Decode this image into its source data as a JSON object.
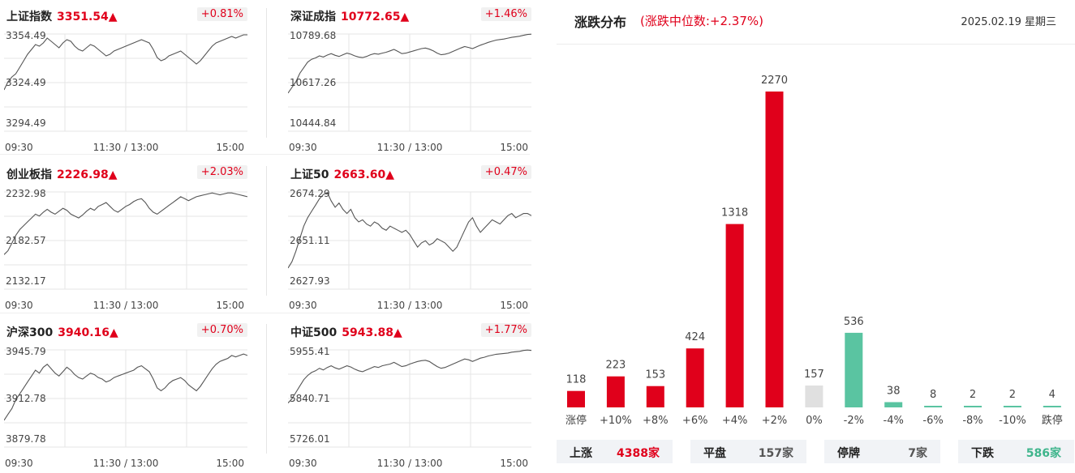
{
  "indices": [
    {
      "name": "上证指数",
      "value": "3351.54▲",
      "pct": "+0.81%",
      "top": "3354.49",
      "mid": "3324.49",
      "bottom": "3294.49",
      "times": [
        "09:30",
        "11:30 / 13:00",
        "15:00"
      ],
      "ylim": [
        3294.49,
        3354.49
      ],
      "series": [
        3320,
        3325,
        3328,
        3330,
        3334,
        3338,
        3342,
        3345,
        3348,
        3347,
        3349,
        3352,
        3350,
        3348,
        3346,
        3349,
        3351,
        3350,
        3347,
        3345,
        3344,
        3346,
        3348,
        3347,
        3345,
        3343,
        3341,
        3342,
        3344,
        3345,
        3346,
        3347,
        3348,
        3349,
        3350,
        3351,
        3350,
        3349,
        3345,
        3340,
        3338,
        3339,
        3341,
        3342,
        3343,
        3344,
        3342,
        3340,
        3338,
        3336,
        3338,
        3341,
        3344,
        3347,
        3349,
        3350,
        3351,
        3352,
        3353,
        3352,
        3353,
        3354,
        3354
      ]
    },
    {
      "name": "深证成指",
      "value": "10772.65▲",
      "pct": "+1.46%",
      "top": "10789.68",
      "mid": "10617.26",
      "bottom": "10444.84",
      "times": [
        "09:30",
        "11:30 / 13:00",
        "15:00"
      ],
      "ylim": [
        10444.84,
        10789.68
      ],
      "series": [
        10580,
        10600,
        10620,
        10650,
        10670,
        10690,
        10700,
        10705,
        10712,
        10708,
        10715,
        10720,
        10714,
        10710,
        10716,
        10722,
        10718,
        10712,
        10708,
        10706,
        10710,
        10716,
        10720,
        10718,
        10722,
        10725,
        10730,
        10735,
        10728,
        10720,
        10722,
        10726,
        10730,
        10734,
        10738,
        10740,
        10736,
        10730,
        10722,
        10716,
        10718,
        10722,
        10728,
        10734,
        10740,
        10745,
        10742,
        10738,
        10744,
        10750,
        10755,
        10760,
        10764,
        10768,
        10770,
        10772,
        10775,
        10778,
        10780,
        10782,
        10785,
        10788,
        10789
      ]
    },
    {
      "name": "创业板指",
      "value": "2226.98▲",
      "pct": "+2.03%",
      "top": "2232.98",
      "mid": "2182.57",
      "bottom": "2132.17",
      "times": [
        "09:30",
        "11:30 / 13:00",
        "15:00"
      ],
      "ylim": [
        2132.17,
        2232.98
      ],
      "series": [
        2168,
        2172,
        2180,
        2188,
        2194,
        2198,
        2202,
        2206,
        2210,
        2208,
        2212,
        2215,
        2212,
        2210,
        2213,
        2216,
        2214,
        2210,
        2208,
        2206,
        2209,
        2213,
        2216,
        2214,
        2218,
        2220,
        2222,
        2218,
        2214,
        2212,
        2215,
        2218,
        2220,
        2223,
        2225,
        2226,
        2222,
        2216,
        2212,
        2210,
        2213,
        2216,
        2219,
        2222,
        2225,
        2228,
        2226,
        2224,
        2226,
        2228,
        2229,
        2230,
        2231,
        2232,
        2231,
        2230,
        2231,
        2232,
        2232,
        2231,
        2230,
        2229,
        2228
      ]
    },
    {
      "name": "上证50",
      "value": "2663.60▲",
      "pct": "+0.47%",
      "top": "2674.29",
      "mid": "2651.11",
      "bottom": "2627.93",
      "times": [
        "09:30",
        "11:30 / 13:00",
        "15:00"
      ],
      "ylim": [
        2627.93,
        2674.29
      ],
      "series": [
        2638,
        2641,
        2646,
        2652,
        2658,
        2662,
        2665,
        2668,
        2671,
        2673,
        2674,
        2670,
        2667,
        2669,
        2666,
        2664,
        2666,
        2662,
        2660,
        2661,
        2659,
        2658,
        2660,
        2659,
        2657,
        2656,
        2658,
        2657,
        2656,
        2655,
        2656,
        2654,
        2651,
        2648,
        2650,
        2651,
        2649,
        2650,
        2652,
        2651,
        2650,
        2648,
        2646,
        2648,
        2652,
        2656,
        2660,
        2662,
        2658,
        2655,
        2657,
        2659,
        2661,
        2660,
        2659,
        2661,
        2663,
        2664,
        2662,
        2663,
        2664,
        2664,
        2663
      ]
    },
    {
      "name": "沪深300",
      "value": "3940.16▲",
      "pct": "+0.70%",
      "top": "3945.79",
      "mid": "3912.78",
      "bottom": "3879.78",
      "times": [
        "09:30",
        "11:30 / 13:00",
        "15:00"
      ],
      "ylim": [
        3879.78,
        3945.79
      ],
      "series": [
        3898,
        3902,
        3906,
        3912,
        3916,
        3920,
        3924,
        3928,
        3932,
        3930,
        3934,
        3936,
        3933,
        3930,
        3928,
        3931,
        3934,
        3932,
        3929,
        3927,
        3926,
        3928,
        3930,
        3929,
        3927,
        3926,
        3924,
        3925,
        3927,
        3928,
        3929,
        3930,
        3931,
        3932,
        3934,
        3935,
        3933,
        3931,
        3926,
        3920,
        3918,
        3920,
        3923,
        3925,
        3926,
        3927,
        3925,
        3922,
        3920,
        3918,
        3921,
        3925,
        3929,
        3933,
        3936,
        3938,
        3939,
        3940,
        3942,
        3941,
        3942,
        3943,
        3942
      ]
    },
    {
      "name": "中证500",
      "value": "5943.88▲",
      "pct": "+1.77%",
      "top": "5955.41",
      "mid": "5840.71",
      "bottom": "5726.01",
      "times": [
        "09:30",
        "11:30 / 13:00",
        "15:00"
      ],
      "ylim": [
        5726.01,
        5955.41
      ],
      "series": [
        5830,
        5840,
        5855,
        5870,
        5885,
        5895,
        5902,
        5906,
        5912,
        5908,
        5914,
        5918,
        5913,
        5910,
        5914,
        5918,
        5915,
        5910,
        5906,
        5904,
        5908,
        5912,
        5916,
        5914,
        5918,
        5920,
        5922,
        5926,
        5921,
        5916,
        5918,
        5922,
        5925,
        5928,
        5930,
        5931,
        5928,
        5922,
        5916,
        5912,
        5914,
        5918,
        5922,
        5926,
        5930,
        5934,
        5932,
        5928,
        5932,
        5936,
        5938,
        5941,
        5943,
        5945,
        5946,
        5947,
        5948,
        5950,
        5951,
        5952,
        5954,
        5955,
        5954
      ]
    }
  ],
  "distribution": {
    "title": "涨跌分布",
    "subtitle": "(涨跌中位数:+2.37%)",
    "date": "2025.02.19 星期三"
  },
  "chart_data": {
    "type": "bar",
    "categories": [
      "涨停",
      "+10%",
      "+8%",
      "+6%",
      "+4%",
      "+2%",
      "0%",
      "-2%",
      "-4%",
      "-6%",
      "-8%",
      "-10%",
      "跌停"
    ],
    "values": [
      118,
      223,
      153,
      424,
      1318,
      2270,
      157,
      536,
      38,
      8,
      2,
      2,
      4
    ],
    "colors": [
      "#e0001b",
      "#e0001b",
      "#e0001b",
      "#e0001b",
      "#e0001b",
      "#e0001b",
      "#e0e0e0",
      "#5ac4a1",
      "#5ac4a1",
      "#5ac4a1",
      "#5ac4a1",
      "#5ac4a1",
      "#5ac4a1"
    ],
    "ylim": [
      0,
      2270
    ]
  },
  "summary": [
    {
      "label": "上涨",
      "value": "4388家",
      "color": "#e0001b"
    },
    {
      "label": "平盘",
      "value": "157家",
      "color": "#555555"
    },
    {
      "label": "停牌",
      "value": "7家",
      "color": "#555555"
    },
    {
      "label": "下跌",
      "value": "586家",
      "color": "#3fb58c"
    }
  ]
}
